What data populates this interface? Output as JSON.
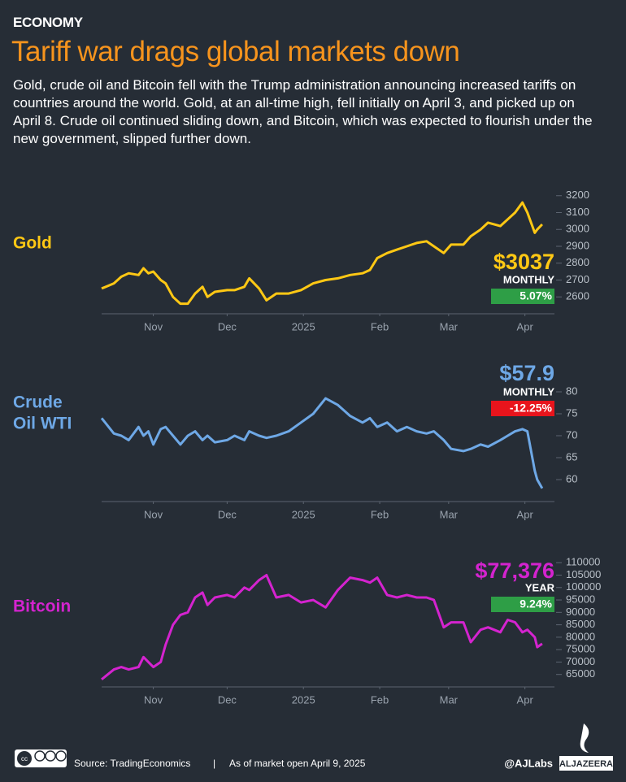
{
  "header": {
    "kicker": "ECONOMY",
    "title": "Tariff war drags global markets down",
    "subtitle": "Gold, crude oil and Bitcoin fell with the Trump administration announcing increased tariffs on countries around the world. Gold, at an all-time high, fell initially on April 3, and picked up on April 8. Crude oil continued sliding down, and Bitcoin, which was expected to flourish under the new government, slipped further down."
  },
  "chart_data": [
    {
      "type": "line",
      "label": [
        "Gold"
      ],
      "price": "$3037",
      "period": "MONTHLY",
      "change": "5.07%",
      "change_color": "#2e9e46",
      "color": "#ffc814",
      "x": [
        0,
        5,
        8,
        11,
        15,
        17,
        19,
        21,
        24,
        26,
        29,
        32,
        35,
        38,
        41,
        43,
        46,
        51,
        54,
        58,
        60,
        64,
        67,
        71,
        76,
        81,
        86,
        91,
        96,
        101,
        106,
        109,
        112,
        116,
        120,
        124,
        128,
        132,
        135,
        139,
        142,
        147,
        150,
        154,
        157,
        162,
        165,
        168,
        171,
        173,
        176,
        177,
        179
      ],
      "values": [
        2650,
        2680,
        2720,
        2740,
        2730,
        2770,
        2740,
        2750,
        2700,
        2680,
        2600,
        2560,
        2560,
        2620,
        2660,
        2600,
        2630,
        2640,
        2640,
        2660,
        2710,
        2650,
        2580,
        2620,
        2620,
        2640,
        2680,
        2700,
        2710,
        2730,
        2740,
        2760,
        2830,
        2860,
        2880,
        2900,
        2920,
        2930,
        2900,
        2860,
        2910,
        2910,
        2960,
        3000,
        3040,
        3020,
        3060,
        3100,
        3160,
        3100,
        2980,
        3000,
        3030
      ],
      "xlim": [
        0,
        184
      ],
      "xticks": [
        {
          "value": 21,
          "label": "Nov"
        },
        {
          "value": 51,
          "label": "Dec"
        },
        {
          "value": 82,
          "label": "2025"
        },
        {
          "value": 113,
          "label": "Feb"
        },
        {
          "value": 141,
          "label": "Mar"
        },
        {
          "value": 172,
          "label": "Apr"
        }
      ],
      "ylim": [
        2500,
        3300
      ],
      "yticks": [
        2600,
        2700,
        2800,
        2900,
        3000,
        3100,
        3200
      ]
    },
    {
      "type": "line",
      "label": [
        "Crude",
        "Oil WTI"
      ],
      "price": "$57.9",
      "period": "MONTHLY",
      "change": "-12.25%",
      "change_color": "#e8141c",
      "color": "#6ea8e6",
      "x": [
        0,
        5,
        8,
        11,
        15,
        17,
        19,
        21,
        24,
        26,
        29,
        32,
        35,
        38,
        41,
        43,
        46,
        51,
        54,
        58,
        60,
        64,
        67,
        71,
        76,
        81,
        86,
        91,
        96,
        101,
        106,
        109,
        112,
        116,
        120,
        124,
        128,
        132,
        135,
        139,
        142,
        147,
        150,
        154,
        157,
        162,
        165,
        168,
        171,
        173,
        176,
        177,
        179
      ],
      "values": [
        74,
        70.5,
        70,
        69,
        72,
        70,
        71,
        68,
        71.5,
        72,
        70,
        68,
        70,
        71,
        69,
        70,
        68.5,
        69,
        70,
        69,
        71,
        70,
        69.5,
        70,
        71,
        73,
        75,
        78.5,
        77,
        74.5,
        73,
        74,
        72,
        73,
        71,
        72,
        71,
        70.5,
        71,
        69,
        67,
        66.5,
        67,
        68,
        67.5,
        69,
        70,
        71,
        71.5,
        71,
        62,
        60,
        58
      ],
      "xlim": [
        0,
        184
      ],
      "xticks": [
        {
          "value": 21,
          "label": "Nov"
        },
        {
          "value": 51,
          "label": "Dec"
        },
        {
          "value": 82,
          "label": "2025"
        },
        {
          "value": 113,
          "label": "Feb"
        },
        {
          "value": 141,
          "label": "Mar"
        },
        {
          "value": 172,
          "label": "Apr"
        }
      ],
      "ylim": [
        55,
        85
      ],
      "yticks": [
        60,
        65,
        70,
        75,
        80
      ]
    },
    {
      "type": "line",
      "label": [
        "Bitcoin"
      ],
      "price": "$77,376",
      "period": "YEAR",
      "change": "9.24%",
      "change_color": "#2e9e46",
      "color": "#d423cf",
      "x": [
        0,
        5,
        8,
        11,
        15,
        17,
        19,
        21,
        24,
        26,
        29,
        32,
        35,
        38,
        41,
        43,
        46,
        51,
        54,
        58,
        60,
        64,
        67,
        71,
        76,
        81,
        86,
        91,
        96,
        101,
        106,
        109,
        112,
        116,
        120,
        124,
        128,
        132,
        135,
        139,
        142,
        147,
        150,
        154,
        157,
        162,
        165,
        168,
        171,
        173,
        176,
        177,
        179
      ],
      "values": [
        63000,
        67000,
        68000,
        67000,
        68000,
        72000,
        70000,
        68000,
        70000,
        77000,
        85000,
        89000,
        90000,
        96000,
        98000,
        93000,
        96000,
        97000,
        96000,
        100000,
        99000,
        103000,
        105000,
        96000,
        97000,
        94000,
        95000,
        92000,
        99000,
        104000,
        103000,
        102000,
        104000,
        97000,
        96000,
        97000,
        96000,
        96000,
        95000,
        84000,
        86000,
        86000,
        78000,
        83000,
        84000,
        82000,
        87000,
        86000,
        82000,
        83000,
        80000,
        76000,
        77376
      ],
      "xlim": [
        0,
        184
      ],
      "xticks": [
        {
          "value": 21,
          "label": "Nov"
        },
        {
          "value": 51,
          "label": "Dec"
        },
        {
          "value": 82,
          "label": "2025"
        },
        {
          "value": 113,
          "label": "Feb"
        },
        {
          "value": 141,
          "label": "Mar"
        },
        {
          "value": 172,
          "label": "Apr"
        }
      ],
      "ylim": [
        60000,
        114000
      ],
      "yticks": [
        65000,
        70000,
        75000,
        80000,
        85000,
        90000,
        95000,
        100000,
        105000,
        110000
      ]
    }
  ],
  "footer": {
    "source": "Source:  TradingEconomics",
    "separator": "|",
    "as_of": "As of  market open April 9, 2025",
    "handle": "@AJLabs",
    "brand": "ALJAZEERA"
  }
}
